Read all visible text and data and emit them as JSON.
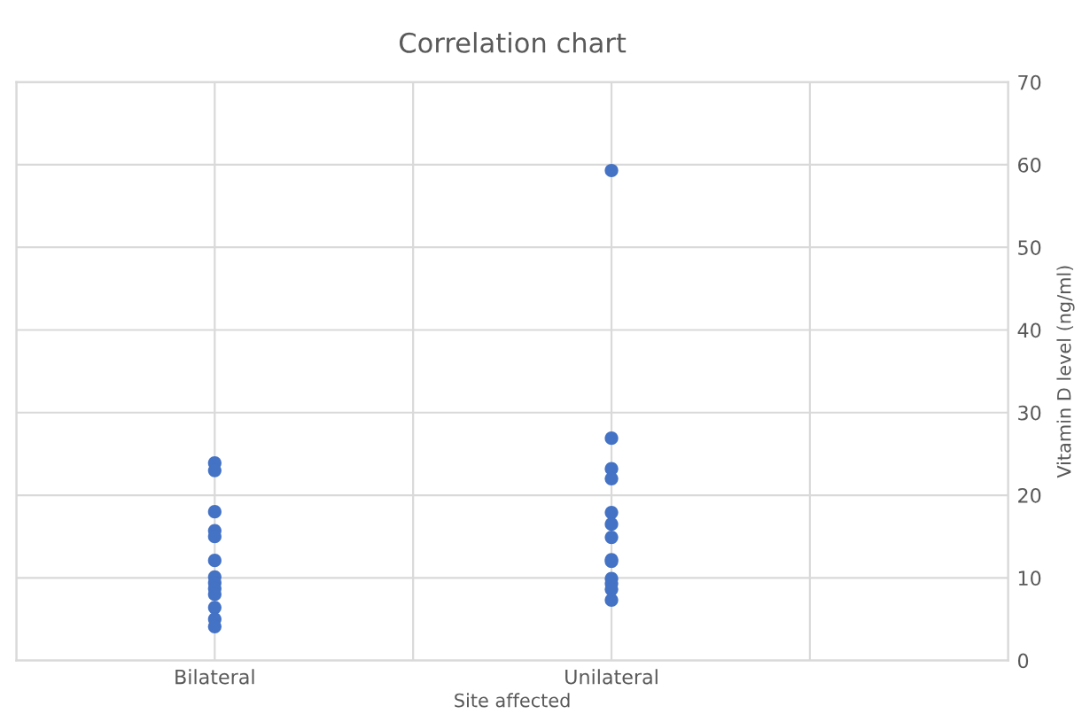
{
  "chart_data": {
    "type": "scatter",
    "title": "Correlation chart",
    "xlabel": "Site affected",
    "ylabel": "Vitamin D level (ng/ml)",
    "categories": [
      null,
      "Bilateral",
      null,
      "Unilateral",
      null,
      null
    ],
    "series": [
      {
        "color": "#4472c4",
        "x": [
          "Bilateral",
          "Bilateral",
          "Bilateral",
          "Bilateral",
          "Bilateral",
          "Bilateral",
          "Bilateral",
          "Bilateral",
          "Bilateral",
          "Bilateral",
          "Bilateral",
          "Bilateral",
          "Bilateral"
        ],
        "values": [
          23.9,
          23,
          18,
          15.7,
          15,
          12.1,
          10.1,
          9.4,
          8.7,
          8,
          6.4,
          5,
          4.1
        ]
      },
      {
        "color": "#4472c4",
        "x": [
          "Unilateral",
          "Unilateral",
          "Unilateral",
          "Unilateral",
          "Unilateral",
          "Unilateral",
          "Unilateral",
          "Unilateral",
          "Unilateral",
          "Unilateral",
          "Unilateral",
          "Unilateral",
          "Unilateral"
        ],
        "values": [
          59.3,
          26.9,
          23.2,
          22,
          17.9,
          16.5,
          14.9,
          12.2,
          12,
          9.9,
          9.3,
          8.6,
          7.3
        ]
      }
    ],
    "ylim": [
      0,
      70
    ],
    "yticks": [
      0,
      10,
      20,
      30,
      40,
      50,
      60,
      70
    ],
    "grid": true,
    "marker": "circle"
  }
}
